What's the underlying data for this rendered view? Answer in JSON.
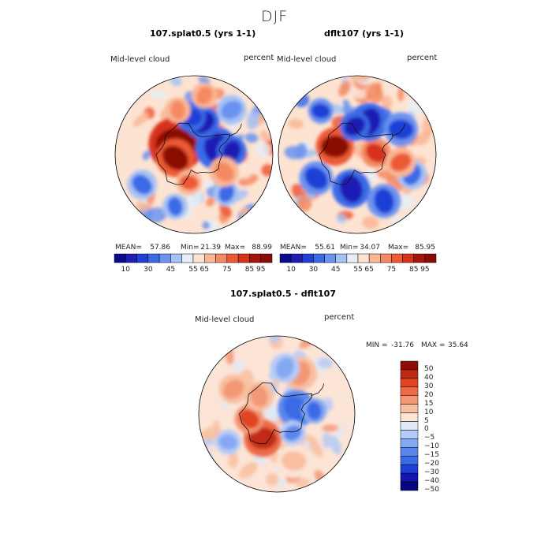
{
  "season": "DJF",
  "colors": {
    "abs_scale": [
      "#0a0a8c",
      "#1e1eb4",
      "#1f3fd6",
      "#3a6ae6",
      "#6b93ef",
      "#a6c2f5",
      "#e6eef7",
      "#fde3d2",
      "#f9b795",
      "#f48a62",
      "#ec5a36",
      "#d6331b",
      "#a4160d",
      "#8b0a04"
    ],
    "diff_scale": [
      "#06067e",
      "#1414b0",
      "#1f3fd6",
      "#3a6ae6",
      "#5b86ee",
      "#85a8f2",
      "#b5cbf6",
      "#e0e9f8",
      "#fce4d6",
      "#f8bfa0",
      "#f39774",
      "#ec6a45",
      "#df4424",
      "#c02a12",
      "#8e0c06"
    ],
    "coast": "#111111"
  },
  "chart_data": [
    {
      "type": "heatmap",
      "projection": "south-polar-stereographic",
      "title": "107.splat0.5 (yrs 1-1)",
      "variable": "Mid-level cloud",
      "units": "percent",
      "stats": {
        "mean_label": "MEAN=",
        "mean": "57.86",
        "min_label": "Min=",
        "min": "21.39",
        "max_label": "Max=",
        "max": "88.99"
      },
      "colorbar_ticks": [
        "10",
        "30",
        "45",
        "55",
        "65",
        "75",
        "85",
        "95"
      ],
      "features": [
        {
          "value": 95,
          "lon": 60,
          "colat": 13,
          "r": 13
        },
        {
          "value": 92,
          "lon": 100,
          "colat": 12,
          "r": 9
        },
        {
          "value": 12,
          "lon": -75,
          "colat": 15,
          "r": 10
        },
        {
          "value": 20,
          "lon": -85,
          "colat": 24,
          "r": 7
        },
        {
          "value": 18,
          "lon": -15,
          "colat": 21,
          "r": 8
        },
        {
          "value": 22,
          "lon": 5,
          "colat": 24,
          "r": 7
        },
        {
          "value": 35,
          "lon": 120,
          "colat": 38,
          "r": 7
        },
        {
          "value": 40,
          "lon": 160,
          "colat": 35,
          "r": 6
        },
        {
          "value": 38,
          "lon": -140,
          "colat": 32,
          "r": 6
        },
        {
          "value": 42,
          "lon": -40,
          "colat": 37,
          "r": 7
        },
        {
          "value": 72,
          "lon": 170,
          "colat": 18,
          "r": 6
        },
        {
          "value": 70,
          "lon": -120,
          "colat": 22,
          "r": 7
        },
        {
          "value": 70,
          "lon": 20,
          "colat": 30,
          "r": 6
        },
        {
          "value": 68,
          "lon": -10,
          "colat": 38,
          "r": 6
        }
      ]
    },
    {
      "type": "heatmap",
      "projection": "south-polar-stereographic",
      "title": "dflt107 (yrs 1-1)",
      "variable": "Mid-level cloud",
      "units": "percent",
      "stats": {
        "mean_label": "MEAN=",
        "mean": "55.61",
        "min_label": "Min=",
        "min": "34.07",
        "max_label": "Max=",
        "max": "85.95"
      },
      "colorbar_ticks": [
        "10",
        "30",
        "45",
        "55",
        "65",
        "75",
        "85",
        "95"
      ],
      "features": [
        {
          "value": 90,
          "lon": 70,
          "colat": 15,
          "r": 9
        },
        {
          "value": 78,
          "lon": -85,
          "colat": 12,
          "r": 7
        },
        {
          "value": 15,
          "lon": 170,
          "colat": 22,
          "r": 9
        },
        {
          "value": 15,
          "lon": -20,
          "colat": 22,
          "r": 9
        },
        {
          "value": 20,
          "lon": 5,
          "colat": 18,
          "r": 7
        },
        {
          "value": 25,
          "lon": -60,
          "colat": 32,
          "r": 8
        },
        {
          "value": 30,
          "lon": 120,
          "colat": 30,
          "r": 8
        },
        {
          "value": 28,
          "lon": -150,
          "colat": 34,
          "r": 8
        },
        {
          "value": 35,
          "lon": -110,
          "colat": 37,
          "r": 7
        },
        {
          "value": 72,
          "lon": -100,
          "colat": 28,
          "r": 7
        },
        {
          "value": 30,
          "lon": 40,
          "colat": 36,
          "r": 6
        }
      ]
    },
    {
      "type": "heatmap",
      "projection": "south-polar-stereographic",
      "title": "107.splat0.5 - dflt107",
      "variable": "Mid-level cloud",
      "units": "percent",
      "stats": {
        "min_label": "MIN =",
        "min": "-31.76",
        "max_label": "MAX =",
        "max": "35.64"
      },
      "colorbar_ticks": [
        "50",
        "40",
        "30",
        "20",
        "15",
        "10",
        "5",
        "0",
        "−5",
        "−10",
        "−15",
        "−20",
        "−30",
        "−40",
        "−50"
      ],
      "features": [
        {
          "value": 32,
          "lon": 150,
          "colat": 18,
          "r": 9
        },
        {
          "value": 22,
          "lon": 100,
          "colat": 18,
          "r": 7
        },
        {
          "value": 15,
          "lon": 45,
          "colat": 16,
          "r": 7
        },
        {
          "value": 12,
          "lon": -30,
          "colat": 30,
          "r": 8
        },
        {
          "value": 12,
          "lon": 60,
          "colat": 32,
          "r": 7
        },
        {
          "value": 8,
          "lon": -160,
          "colat": 32,
          "r": 8
        },
        {
          "value": -28,
          "lon": -75,
          "colat": 13,
          "r": 9
        },
        {
          "value": -22,
          "lon": -85,
          "colat": 24,
          "r": 6
        },
        {
          "value": -12,
          "lon": -10,
          "colat": 30,
          "r": 7
        },
        {
          "value": -15,
          "lon": -140,
          "colat": 16,
          "r": 6
        },
        {
          "value": -10,
          "lon": 120,
          "colat": 36,
          "r": 6
        }
      ]
    }
  ]
}
